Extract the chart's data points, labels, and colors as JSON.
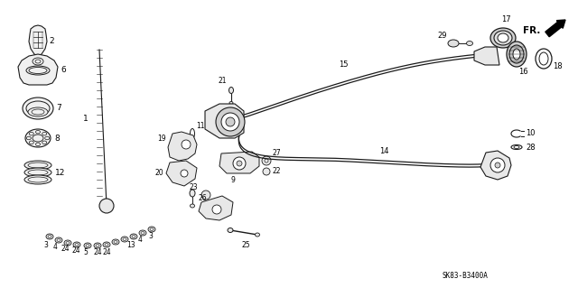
{
  "title": "SK83-B3400A",
  "bg_color": "#ffffff",
  "lc": "#1a1a1a",
  "figsize": [
    6.4,
    3.19
  ],
  "dpi": 100
}
